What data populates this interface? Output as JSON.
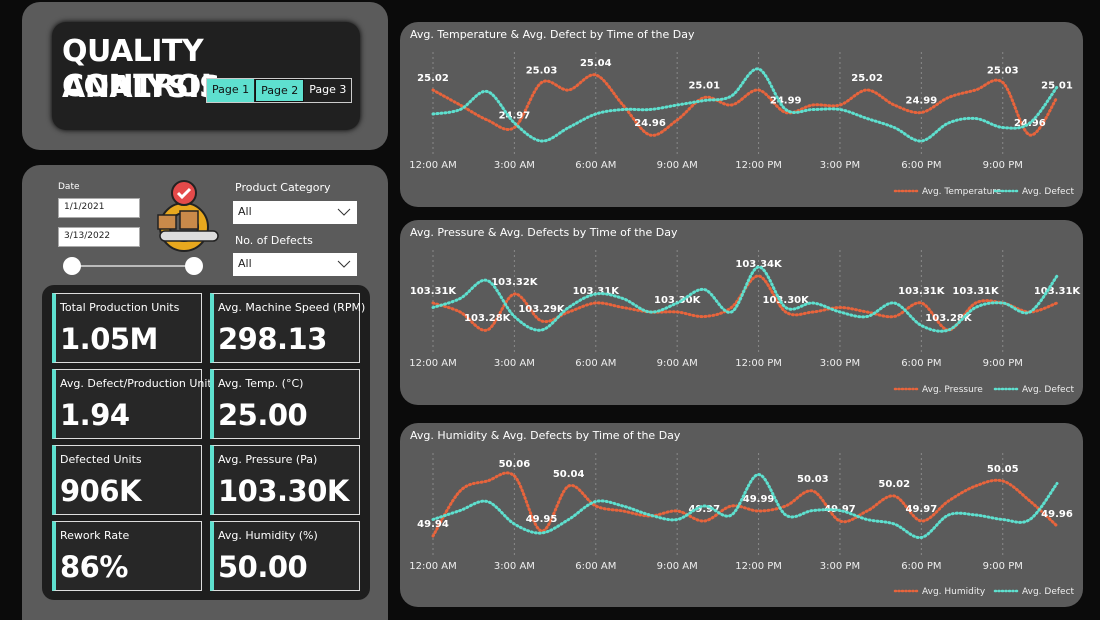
{
  "header": {
    "title_lines": [
      "QUALITY CONTROL",
      "ANALYSIS"
    ],
    "pages": [
      "Page 1",
      "Page 2",
      "Page 3"
    ]
  },
  "filters": {
    "date_label": "Date",
    "start_date": "1/1/2021",
    "end_date": "3/13/2022",
    "product_category_label": "Product Category",
    "product_category_value": "All",
    "defects_label": "No. of Defects",
    "defects_value": "All"
  },
  "kpis": [
    {
      "label": "Total Production Units",
      "value": "1.05M"
    },
    {
      "label": "Avg. Machine Speed (RPM)",
      "value": "298.13"
    },
    {
      "label": "Avg. Defect/Production Unit",
      "value": "1.94"
    },
    {
      "label": "Avg. Temp. (°C)",
      "value": "25.00"
    },
    {
      "label": "Defected Units",
      "value": "906K"
    },
    {
      "label": "Avg. Pressure (Pa)",
      "value": "103.30K"
    },
    {
      "label": "Rework Rate",
      "value": "86%"
    },
    {
      "label": "Avg. Humidity (%)",
      "value": "50.00"
    }
  ],
  "charts": [
    {
      "type": "line",
      "title": "Avg. Temperature & Avg. Defect by Time of the Day",
      "categories": [
        "12:00 AM",
        null,
        null,
        "3:00 AM",
        null,
        null,
        "6:00 AM",
        null,
        null,
        "9:00 AM",
        null,
        null,
        "12:00 PM",
        null,
        null,
        "3:00 PM",
        null,
        null,
        "6:00 PM",
        null,
        null,
        "9:00 PM",
        null,
        null
      ],
      "ylim": [
        24.94,
        25.06
      ],
      "y2lim": [
        1.84,
        2.04
      ],
      "series": [
        {
          "name": "Avg. Temperature",
          "color": "#e8643c",
          "values": [
            25.02,
            25.0,
            24.98,
            24.97,
            25.03,
            25.02,
            25.04,
            25.0,
            24.96,
            24.98,
            25.01,
            25.0,
            25.02,
            24.99,
            25.0,
            25.0,
            25.02,
            25.0,
            24.99,
            25.01,
            25.02,
            25.03,
            24.96,
            25.01
          ],
          "value_labels": [
            "25.02",
            null,
            null,
            "24.97",
            "25.03",
            null,
            "25.04",
            null,
            "24.96",
            null,
            "25.01",
            null,
            null,
            "24.99",
            null,
            null,
            "25.02",
            null,
            "24.99",
            null,
            null,
            "25.03",
            "24.96",
            "25.01"
          ]
        },
        {
          "name": "Avg. Defect",
          "color": "#5ee0cf",
          "axis": "y2",
          "values": [
            1.92,
            1.93,
            1.97,
            1.9,
            1.86,
            1.89,
            1.92,
            1.93,
            1.93,
            1.94,
            1.95,
            1.96,
            2.02,
            1.93,
            1.93,
            1.93,
            1.91,
            1.89,
            1.86,
            1.9,
            1.91,
            1.89,
            1.9,
            1.98
          ]
        }
      ]
    },
    {
      "type": "line",
      "title": "Avg. Pressure & Avg. Defects by Time of the Day",
      "categories": [
        "12:00 AM",
        null,
        null,
        "3:00 AM",
        null,
        null,
        "6:00 AM",
        null,
        null,
        "9:00 AM",
        null,
        null,
        "12:00 PM",
        null,
        null,
        "3:00 PM",
        null,
        null,
        "6:00 PM",
        null,
        null,
        "9:00 PM",
        null,
        null
      ],
      "ylim": [
        103260,
        103360
      ],
      "y2lim": [
        1.84,
        2.04
      ],
      "series": [
        {
          "name": "Avg. Pressure",
          "color": "#e8643c",
          "values": [
            103310,
            103300,
            103280,
            103320,
            103290,
            103300,
            103310,
            103305,
            103300,
            103300,
            103295,
            103305,
            103340,
            103300,
            103300,
            103305,
            103300,
            103295,
            103310,
            103280,
            103310,
            103310,
            103300,
            103310
          ],
          "value_labels": [
            "103.31K",
            null,
            "103.28K",
            "103.32K",
            "103.29K",
            null,
            "103.31K",
            null,
            null,
            "103.30K",
            null,
            null,
            "103.34K",
            "103.30K",
            null,
            null,
            null,
            null,
            "103.31K",
            "103.28K",
            "103.31K",
            null,
            null,
            "103.31K"
          ]
        },
        {
          "name": "Avg. Defect",
          "color": "#5ee0cf",
          "axis": "y2",
          "values": [
            1.93,
            1.95,
            1.99,
            1.91,
            1.88,
            1.93,
            1.96,
            1.95,
            1.92,
            1.94,
            1.97,
            1.92,
            2.02,
            1.93,
            1.94,
            1.92,
            1.91,
            1.94,
            1.89,
            1.88,
            1.93,
            1.94,
            1.92,
            2.0
          ]
        }
      ]
    },
    {
      "type": "line",
      "title": "Avg. Humidity & Avg. Defects by Time of the Day",
      "categories": [
        "12:00 AM",
        null,
        null,
        "3:00 AM",
        null,
        null,
        "6:00 AM",
        null,
        null,
        "9:00 AM",
        null,
        null,
        "12:00 PM",
        null,
        null,
        "3:00 PM",
        null,
        null,
        "6:00 PM",
        null,
        null,
        "9:00 PM",
        null,
        null
      ],
      "ylim": [
        49.91,
        50.09
      ],
      "y2lim": [
        1.84,
        2.04
      ],
      "series": [
        {
          "name": "Avg. Humidity",
          "color": "#e8643c",
          "values": [
            49.94,
            50.03,
            50.05,
            50.06,
            49.95,
            50.04,
            50.0,
            49.99,
            49.98,
            49.99,
            49.97,
            50.0,
            49.99,
            50.0,
            50.03,
            49.97,
            49.99,
            50.02,
            49.97,
            50.01,
            50.04,
            50.05,
            50.01,
            49.96
          ],
          "value_labels": [
            "49.94",
            null,
            null,
            "50.06",
            "49.95",
            "50.04",
            null,
            null,
            null,
            null,
            "49.97",
            null,
            "49.99",
            null,
            "50.03",
            "49.97",
            null,
            "50.02",
            "49.97",
            null,
            null,
            "50.05",
            null,
            "49.96"
          ]
        },
        {
          "name": "Avg. Defect",
          "color": "#5ee0cf",
          "axis": "y2",
          "values": [
            1.91,
            1.93,
            1.95,
            1.9,
            1.88,
            1.91,
            1.95,
            1.94,
            1.92,
            1.91,
            1.94,
            1.92,
            2.01,
            1.92,
            1.93,
            1.93,
            1.91,
            1.9,
            1.87,
            1.92,
            1.92,
            1.91,
            1.91,
            1.99
          ]
        }
      ]
    }
  ]
}
